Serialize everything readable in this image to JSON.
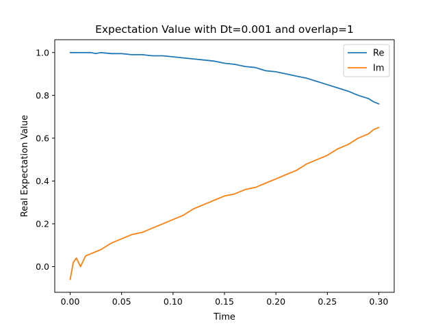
{
  "chart_data": {
    "type": "line",
    "title": "Expectation Value with Dt=0.001 and overlap=1",
    "xlabel": "Time",
    "ylabel": "Real Expectation Value",
    "xlim": [
      -0.015,
      0.315
    ],
    "ylim": [
      -0.12,
      1.06
    ],
    "xticks": [
      0.0,
      0.05,
      0.1,
      0.15,
      0.2,
      0.25,
      0.3
    ],
    "xtick_labels": [
      "0.00",
      "0.05",
      "0.10",
      "0.15",
      "0.20",
      "0.25",
      "0.30"
    ],
    "yticks": [
      0.0,
      0.2,
      0.4,
      0.6,
      0.8,
      1.0
    ],
    "ytick_labels": [
      "0.0",
      "0.2",
      "0.4",
      "0.6",
      "0.8",
      "1.0"
    ],
    "grid": false,
    "legend_position": "top-right",
    "series": [
      {
        "name": "Re",
        "color": "#1f77b4",
        "x": [
          0.0,
          0.01,
          0.02,
          0.025,
          0.03,
          0.04,
          0.05,
          0.06,
          0.07,
          0.08,
          0.09,
          0.1,
          0.11,
          0.12,
          0.13,
          0.14,
          0.15,
          0.16,
          0.17,
          0.18,
          0.19,
          0.2,
          0.21,
          0.22,
          0.23,
          0.24,
          0.25,
          0.26,
          0.27,
          0.28,
          0.29,
          0.295,
          0.3
        ],
        "values": [
          1.0,
          1.0,
          1.0,
          0.995,
          1.0,
          0.995,
          0.995,
          0.99,
          0.99,
          0.985,
          0.985,
          0.98,
          0.975,
          0.97,
          0.965,
          0.96,
          0.95,
          0.945,
          0.935,
          0.93,
          0.915,
          0.91,
          0.9,
          0.89,
          0.88,
          0.865,
          0.85,
          0.835,
          0.82,
          0.8,
          0.785,
          0.77,
          0.76
        ]
      },
      {
        "name": "Im",
        "color": "#ff7f0e",
        "x": [
          0.0,
          0.003,
          0.006,
          0.01,
          0.015,
          0.02,
          0.03,
          0.04,
          0.05,
          0.06,
          0.07,
          0.08,
          0.09,
          0.1,
          0.11,
          0.12,
          0.13,
          0.14,
          0.15,
          0.16,
          0.17,
          0.18,
          0.19,
          0.2,
          0.21,
          0.22,
          0.23,
          0.24,
          0.25,
          0.26,
          0.27,
          0.28,
          0.29,
          0.295,
          0.3
        ],
        "values": [
          -0.06,
          0.02,
          0.04,
          0.0,
          0.05,
          0.06,
          0.08,
          0.11,
          0.13,
          0.15,
          0.16,
          0.18,
          0.2,
          0.22,
          0.24,
          0.27,
          0.29,
          0.31,
          0.33,
          0.34,
          0.36,
          0.37,
          0.39,
          0.41,
          0.43,
          0.45,
          0.48,
          0.5,
          0.52,
          0.55,
          0.57,
          0.6,
          0.62,
          0.64,
          0.65
        ]
      }
    ]
  }
}
